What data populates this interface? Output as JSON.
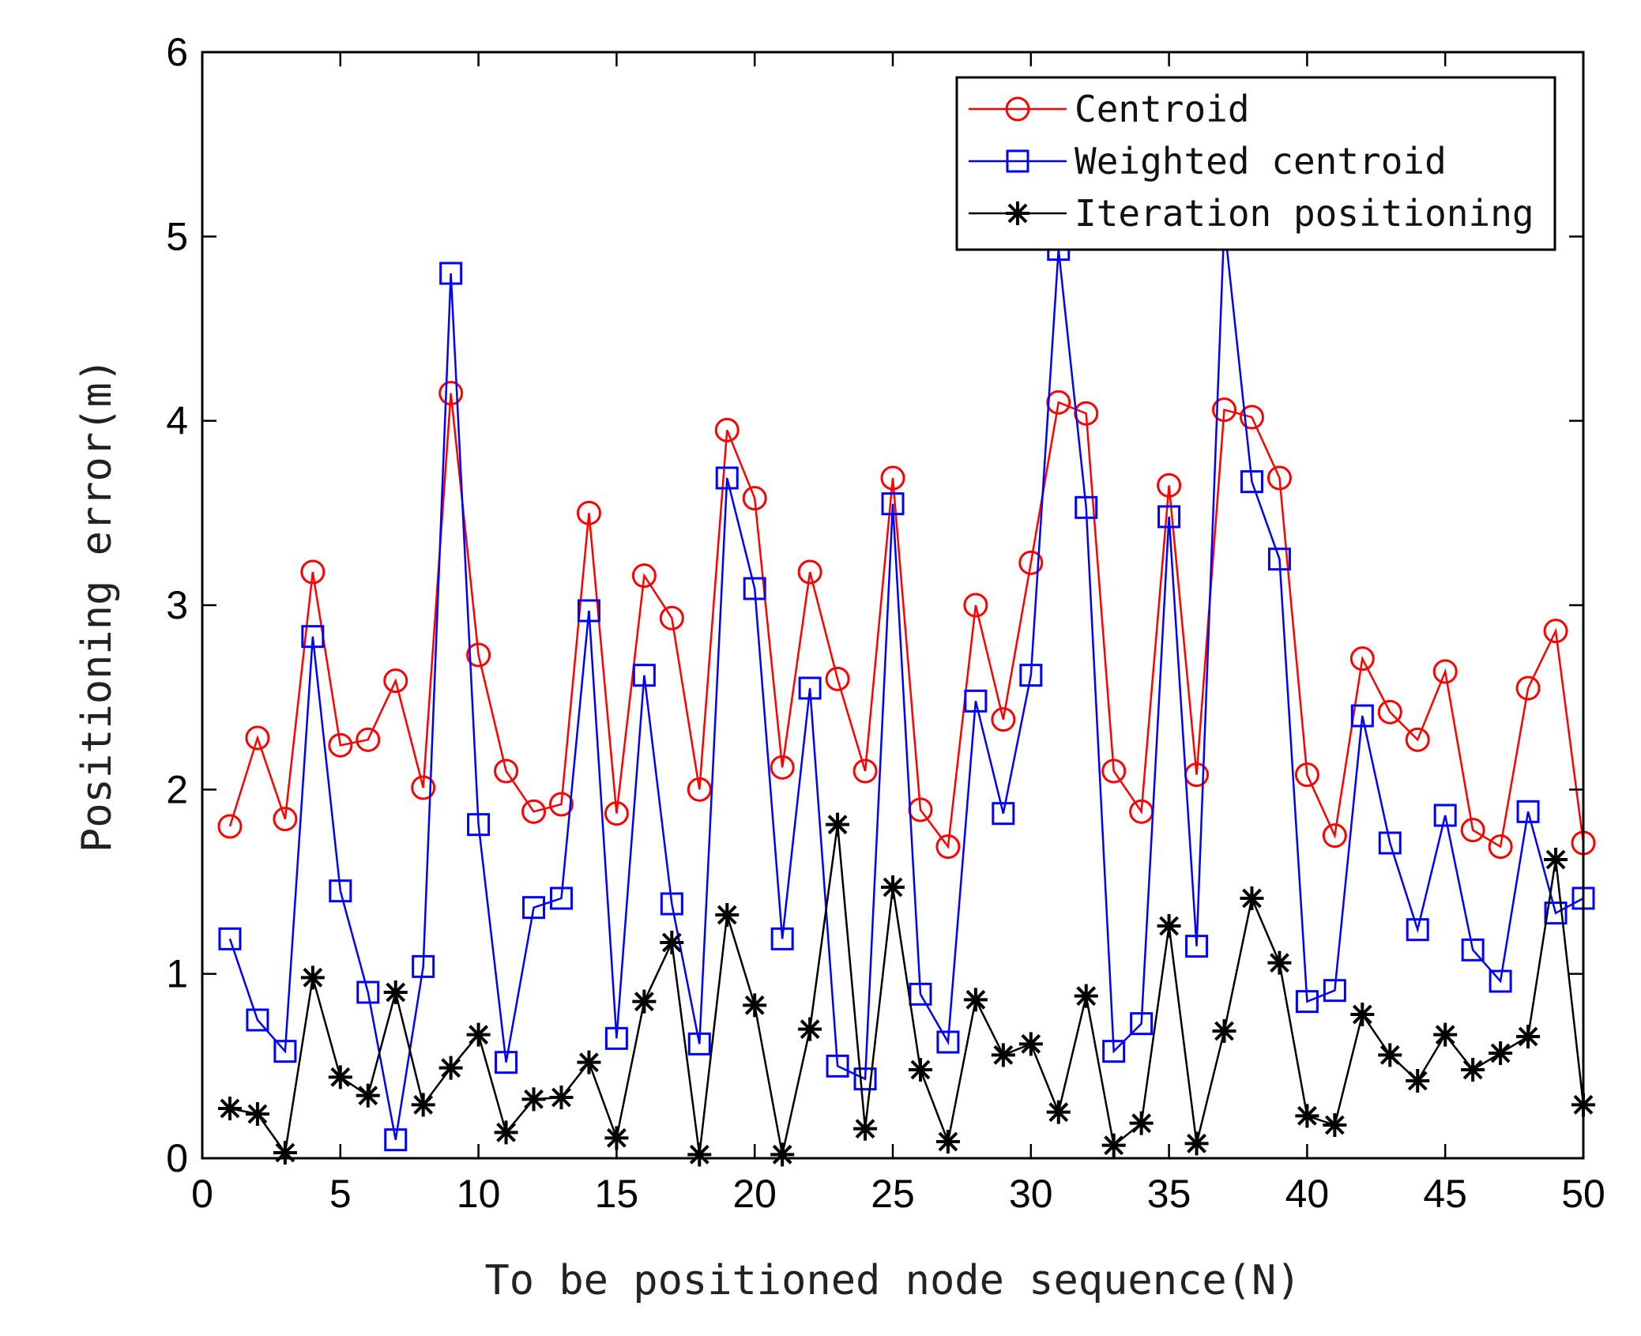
{
  "chart_data": {
    "type": "line",
    "title": "",
    "xlabel": "To be positioned node sequence(N)",
    "ylabel": "Positioning error(m)",
    "xlim": [
      0,
      50
    ],
    "ylim": [
      0,
      6
    ],
    "xticks": [
      0,
      5,
      10,
      15,
      20,
      25,
      30,
      35,
      40,
      45,
      50
    ],
    "yticks": [
      0,
      1,
      2,
      3,
      4,
      5,
      6
    ],
    "grid": false,
    "legend_position": "top-right",
    "x": [
      1,
      2,
      3,
      4,
      5,
      6,
      7,
      8,
      9,
      10,
      11,
      12,
      13,
      14,
      15,
      16,
      17,
      18,
      19,
      20,
      21,
      22,
      23,
      24,
      25,
      26,
      27,
      28,
      29,
      30,
      31,
      32,
      33,
      34,
      35,
      36,
      37,
      38,
      39,
      40,
      41,
      42,
      43,
      44,
      45,
      46,
      47,
      48,
      49,
      50
    ],
    "series": [
      {
        "name": "Centroid",
        "color": "#ff0000",
        "marker": "circle",
        "values": [
          1.8,
          2.28,
          1.84,
          3.18,
          2.24,
          2.27,
          2.59,
          2.01,
          4.15,
          2.73,
          2.1,
          1.88,
          1.92,
          3.5,
          1.87,
          3.16,
          2.93,
          2.0,
          3.95,
          3.58,
          2.12,
          3.18,
          2.6,
          2.1,
          3.69,
          1.89,
          1.69,
          3.0,
          2.38,
          3.23,
          4.1,
          4.04,
          2.1,
          1.88,
          3.65,
          2.08,
          4.06,
          4.02,
          3.69,
          2.08,
          1.75,
          2.71,
          2.42,
          2.27,
          2.64,
          1.78,
          1.69,
          2.55,
          2.86,
          1.71
        ]
      },
      {
        "name": "Weighted centroid",
        "color": "#0000ff",
        "marker": "square",
        "values": [
          1.19,
          0.75,
          0.58,
          2.83,
          1.45,
          0.9,
          0.1,
          1.04,
          4.8,
          1.81,
          0.52,
          1.36,
          1.41,
          2.97,
          0.65,
          2.62,
          1.38,
          0.62,
          3.69,
          3.09,
          1.19,
          2.55,
          0.5,
          0.43,
          3.55,
          0.89,
          0.63,
          2.48,
          1.87,
          2.62,
          4.93,
          3.53,
          0.58,
          0.73,
          3.48,
          1.15,
          5.07,
          3.67,
          3.25,
          0.85,
          0.91,
          2.4,
          1.71,
          1.24,
          1.86,
          1.13,
          0.96,
          1.88,
          1.33,
          1.41
        ]
      },
      {
        "name": "Iteration positioning",
        "color": "#000000",
        "marker": "asterisk",
        "values": [
          0.27,
          0.24,
          0.03,
          0.98,
          0.44,
          0.34,
          0.9,
          0.29,
          0.49,
          0.67,
          0.14,
          0.32,
          0.33,
          0.52,
          0.11,
          0.85,
          1.17,
          0.02,
          1.32,
          0.83,
          0.02,
          0.7,
          1.81,
          0.16,
          1.47,
          0.48,
          0.09,
          0.86,
          0.56,
          0.62,
          0.25,
          0.88,
          0.07,
          0.19,
          1.26,
          0.08,
          0.69,
          1.41,
          1.06,
          0.23,
          0.18,
          0.78,
          0.56,
          0.42,
          0.67,
          0.48,
          0.57,
          0.66,
          1.62,
          0.29
        ]
      }
    ]
  }
}
